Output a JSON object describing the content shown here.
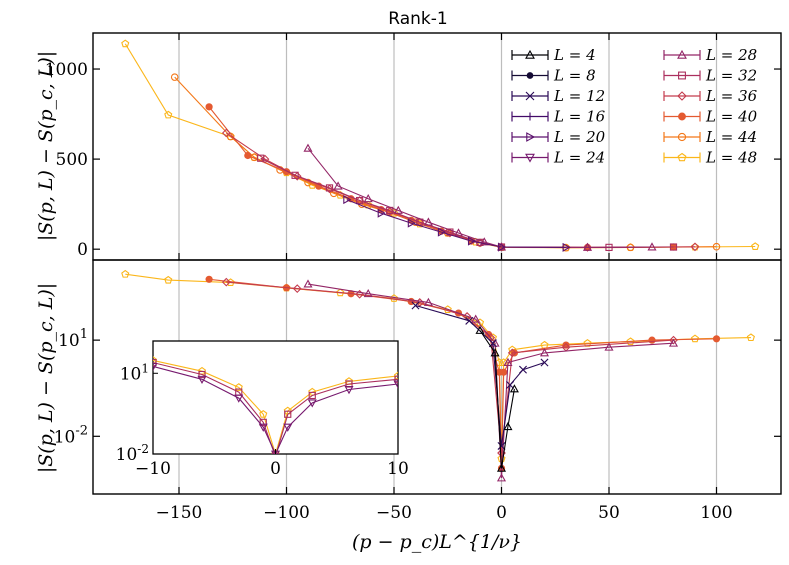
{
  "chart_data": {
    "type": "scatter",
    "title": "Rank-1",
    "xlabel": "(p − p_c)L^{1/ν}",
    "xlim": [
      -190,
      130
    ],
    "xticks": [
      -150,
      -100,
      -50,
      0,
      50,
      100
    ],
    "xtick_labels": [
      "−150",
      "−100",
      "−50",
      "0",
      "50",
      "100"
    ],
    "grid": "vertical lines at x ticks",
    "legend_position": "top-right (two columns)",
    "series": [
      {
        "name": "L = 4",
        "label": "L = 4",
        "color": "#000004",
        "marker": "triangle-up"
      },
      {
        "name": "L = 8",
        "label": "L = 8",
        "color": "#140b34",
        "marker": "star"
      },
      {
        "name": "L = 12",
        "label": "L = 12",
        "color": "#2a0b57",
        "marker": "x"
      },
      {
        "name": "L = 16",
        "label": "L = 16",
        "color": "#420a68",
        "marker": "plus"
      },
      {
        "name": "L = 20",
        "label": "L = 20",
        "color": "#5c126e",
        "marker": "triangle-right"
      },
      {
        "name": "L = 24",
        "label": "L = 24",
        "color": "#76196e",
        "marker": "triangle-down"
      },
      {
        "name": "L = 28",
        "label": "L = 28",
        "color": "#932667",
        "marker": "triangle-up"
      },
      {
        "name": "L = 32",
        "label": "L = 32",
        "color": "#ab2f5e",
        "marker": "square"
      },
      {
        "name": "L = 36",
        "label": "L = 36",
        "color": "#c43c4e",
        "marker": "diamond"
      },
      {
        "name": "L = 40",
        "label": "L = 40",
        "color": "#e45a31",
        "marker": "circle-filled"
      },
      {
        "name": "L = 44",
        "label": "L = 44",
        "color": "#f37819",
        "marker": "octagon"
      },
      {
        "name": "L = 48",
        "label": "L = 48",
        "color": "#fbb61a",
        "marker": "pentagon"
      }
    ],
    "panels": [
      {
        "id": "top",
        "ylabel": "|S(p, L) − S(p_c, L)|",
        "yscale": "linear",
        "ylim": [
          -60,
          1200
        ],
        "yticks": [
          0,
          500,
          1000
        ],
        "ytick_labels": [
          "0",
          "500",
          "1000"
        ],
        "curves": [
          {
            "series": "L = 48",
            "points": [
              [
                -175,
                1140
              ],
              [
                -155,
                745
              ],
              [
                -126,
                625
              ],
              [
                -115,
                510
              ],
              [
                -100,
                425
              ],
              [
                -88,
                355
              ],
              [
                -75,
                300
              ],
              [
                -62,
                245
              ],
              [
                -50,
                200
              ],
              [
                -38,
                140
              ],
              [
                -25,
                90
              ],
              [
                -12,
                40
              ],
              [
                0,
                10
              ],
              [
                30,
                8
              ],
              [
                60,
                10
              ],
              [
                90,
                12
              ],
              [
                118,
                15
              ]
            ]
          },
          {
            "series": "L = 44",
            "points": [
              [
                -152,
                955
              ],
              [
                -126,
                625
              ],
              [
                -115,
                510
              ],
              [
                -103,
                440
              ],
              [
                -90,
                370
              ],
              [
                -78,
                310
              ],
              [
                -65,
                250
              ],
              [
                -52,
                205
              ],
              [
                -40,
                150
              ],
              [
                -25,
                90
              ],
              [
                -10,
                35
              ],
              [
                0,
                12
              ],
              [
                30,
                8
              ],
              [
                60,
                10
              ],
              [
                100,
                14
              ]
            ]
          },
          {
            "series": "L = 40",
            "points": [
              [
                -136,
                790
              ],
              [
                -118,
                520
              ],
              [
                -100,
                430
              ],
              [
                -85,
                350
              ],
              [
                -70,
                280
              ],
              [
                -56,
                220
              ],
              [
                -42,
                160
              ],
              [
                -28,
                100
              ],
              [
                -14,
                45
              ],
              [
                0,
                12
              ],
              [
                40,
                10
              ],
              [
                80,
                12
              ]
            ]
          },
          {
            "series": "L = 36",
            "points": [
              [
                -128,
                645
              ],
              [
                -110,
                500
              ],
              [
                -95,
                405
              ],
              [
                -80,
                335
              ],
              [
                -66,
                270
              ],
              [
                -52,
                210
              ],
              [
                -38,
                150
              ],
              [
                -24,
                90
              ],
              [
                -10,
                35
              ],
              [
                0,
                12
              ],
              [
                40,
                10
              ],
              [
                90,
                13
              ]
            ]
          },
          {
            "series": "L = 32",
            "points": [
              [
                -112,
                505
              ],
              [
                -96,
                410
              ],
              [
                -80,
                340
              ],
              [
                -66,
                270
              ],
              [
                -52,
                215
              ],
              [
                -38,
                150
              ],
              [
                -24,
                95
              ],
              [
                -10,
                38
              ],
              [
                0,
                12
              ],
              [
                50,
                10
              ],
              [
                80,
                12
              ]
            ]
          },
          {
            "series": "L = 28",
            "points": [
              [
                -90,
                560
              ],
              [
                -76,
                350
              ],
              [
                -62,
                280
              ],
              [
                -48,
                215
              ],
              [
                -34,
                150
              ],
              [
                -20,
                90
              ],
              [
                -8,
                40
              ],
              [
                0,
                12
              ],
              [
                40,
                10
              ],
              [
                70,
                12
              ]
            ]
          },
          {
            "series": "L = 20",
            "points": [
              [
                -72,
                275
              ],
              [
                -56,
                200
              ],
              [
                -42,
                145
              ],
              [
                -28,
                95
              ],
              [
                -14,
                45
              ],
              [
                0,
                12
              ],
              [
                30,
                10
              ]
            ]
          }
        ]
      },
      {
        "id": "bottom",
        "ylabel": "|S(p, L) − S(p_c, L)|",
        "yscale": "log",
        "ylim_log10": [
          -3.8,
          3.5
        ],
        "yticks_log10": [
          1,
          -2
        ],
        "ytick_labels": [
          "10^1",
          "10^-2"
        ],
        "curves": [
          {
            "series": "L = 48",
            "points": [
              [
                -175,
                1140
              ],
              [
                -155,
                745
              ],
              [
                -126,
                625
              ],
              [
                -100,
                425
              ],
              [
                -75,
                300
              ],
              [
                -50,
                200
              ],
              [
                -25,
                90
              ],
              [
                -10,
                35
              ],
              [
                -4,
                12
              ],
              [
                -1,
                2
              ],
              [
                0,
                0.002
              ],
              [
                1,
                2
              ],
              [
                5,
                5
              ],
              [
                20,
                7
              ],
              [
                40,
                8
              ],
              [
                60,
                9
              ],
              [
                90,
                11
              ],
              [
                116,
                12
              ]
            ]
          },
          {
            "series": "L = 40",
            "points": [
              [
                -136,
                790
              ],
              [
                -100,
                430
              ],
              [
                -70,
                280
              ],
              [
                -42,
                160
              ],
              [
                -20,
                70
              ],
              [
                -6,
                15
              ],
              [
                -1,
                1
              ],
              [
                0,
                0.001
              ],
              [
                1,
                1
              ],
              [
                6,
                4
              ],
              [
                30,
                7
              ],
              [
                70,
                10
              ],
              [
                100,
                11
              ]
            ]
          },
          {
            "series": "L = 36",
            "points": [
              [
                -128,
                645
              ],
              [
                -95,
                405
              ],
              [
                -66,
                270
              ],
              [
                -38,
                150
              ],
              [
                -16,
                55
              ],
              [
                -5,
                12
              ],
              [
                0,
                0.003
              ],
              [
                5,
                4
              ],
              [
                30,
                6
              ],
              [
                80,
                10
              ]
            ]
          },
          {
            "series": "L = 28",
            "points": [
              [
                -90,
                560
              ],
              [
                -62,
                280
              ],
              [
                -34,
                150
              ],
              [
                -12,
                45
              ],
              [
                -3,
                8
              ],
              [
                0,
                0.0005
              ],
              [
                3,
                2
              ],
              [
                20,
                4
              ],
              [
                50,
                6
              ],
              [
                80,
                8
              ]
            ]
          },
          {
            "series": "L = 12",
            "points": [
              [
                -40,
                120
              ],
              [
                -15,
                40
              ],
              [
                -4,
                8
              ],
              [
                0,
                0.005
              ],
              [
                4,
                0.4
              ],
              [
                10,
                1.2
              ],
              [
                20,
                2
              ]
            ]
          },
          {
            "series": "L = 4",
            "points": [
              [
                -10,
                20
              ],
              [
                -3,
                4
              ],
              [
                0,
                0.001
              ],
              [
                3,
                0.02
              ],
              [
                6,
                0.3
              ]
            ]
          }
        ]
      },
      {
        "id": "inset",
        "yscale": "log",
        "xlim": [
          -10,
          10
        ],
        "xticks": [
          -10,
          0,
          10
        ],
        "xtick_labels": [
          "−10",
          "0",
          "10"
        ],
        "ylim_log10": [
          -2,
          2.2
        ],
        "yticks_log10": [
          1,
          -2
        ],
        "ytick_labels": [
          "10^1",
          "10^-2"
        ],
        "curves": [
          {
            "series": "L = 48",
            "points": [
              [
                -10,
                30
              ],
              [
                -6,
                12
              ],
              [
                -3,
                3
              ],
              [
                -1,
                0.3
              ],
              [
                0,
                0.01
              ],
              [
                1,
                0.4
              ],
              [
                3,
                2
              ],
              [
                6,
                5
              ],
              [
                10,
                8
              ]
            ]
          },
          {
            "series": "L = 32",
            "points": [
              [
                -10,
                25
              ],
              [
                -6,
                9
              ],
              [
                -3,
                2
              ],
              [
                -1,
                0.15
              ],
              [
                0,
                0.008
              ],
              [
                1,
                0.3
              ],
              [
                3,
                1.5
              ],
              [
                6,
                4
              ],
              [
                10,
                6
              ]
            ]
          },
          {
            "series": "L = 24",
            "points": [
              [
                -10,
                18
              ],
              [
                -6,
                6
              ],
              [
                -3,
                1.2
              ],
              [
                -1,
                0.1
              ],
              [
                0,
                0.01
              ],
              [
                1,
                0.1
              ],
              [
                3,
                0.8
              ],
              [
                6,
                2.5
              ],
              [
                10,
                4
              ]
            ]
          }
        ]
      }
    ]
  }
}
